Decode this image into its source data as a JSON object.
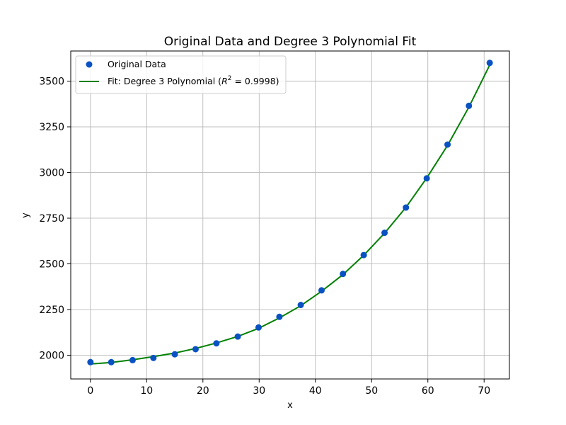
{
  "chart_data": {
    "type": "scatter",
    "title": "Original Data and Degree 3 Polynomial Fit",
    "xlabel": "x",
    "ylabel": "y",
    "xlim": [
      -3.5,
      74.5
    ],
    "ylim": [
      1870,
      3665
    ],
    "xticks": [
      0,
      10,
      20,
      30,
      40,
      50,
      60,
      70
    ],
    "xtick_labels": [
      "0",
      "10",
      "20",
      "30",
      "40",
      "50",
      "60",
      "70"
    ],
    "yticks": [
      2000,
      2250,
      2500,
      2750,
      3000,
      3250,
      3500
    ],
    "ytick_labels": [
      "2000",
      "2250",
      "2500",
      "2750",
      "3000",
      "3250",
      "3500"
    ],
    "grid": true,
    "legend_position": "top-left",
    "series": [
      {
        "name": "Original Data",
        "kind": "scatter",
        "color": "#0a52c4",
        "x": [
          0,
          3.7,
          7.5,
          11.2,
          15,
          18.7,
          22.4,
          26.2,
          29.9,
          33.6,
          37.4,
          41.1,
          44.9,
          48.6,
          52.3,
          56.1,
          59.8,
          63.5,
          67.3,
          71
        ],
        "y": [
          1962,
          1962,
          1973,
          1985,
          2005,
          2033,
          2065,
          2102,
          2152,
          2210,
          2275,
          2355,
          2445,
          2548,
          2670,
          2808,
          2968,
          3153,
          3365,
          3600
        ]
      },
      {
        "name": "Fit: Degree 3 Polynomial ($R^2 = 0.9998$)",
        "kind": "line",
        "color": "#008000",
        "x": [
          0,
          3.7,
          7.5,
          11.2,
          15,
          18.7,
          22.4,
          26.2,
          29.9,
          33.6,
          37.4,
          41.1,
          44.9,
          48.6,
          52.3,
          56.1,
          59.8,
          63.5,
          67.3,
          71
        ],
        "y": [
          1952,
          1960,
          1975,
          1992,
          2012,
          2037,
          2067,
          2103,
          2147,
          2204,
          2271,
          2350,
          2441,
          2547,
          2668,
          2809,
          2970,
          3148,
          3358,
          3588
        ]
      }
    ],
    "legend": {
      "scatter_label": "Original Data",
      "fit_label_prefix": "Fit: Degree 3 Polynomial (",
      "fit_label_r": "R",
      "fit_label_sup": "2",
      "fit_label_suffix": " = 0.9998)"
    }
  }
}
